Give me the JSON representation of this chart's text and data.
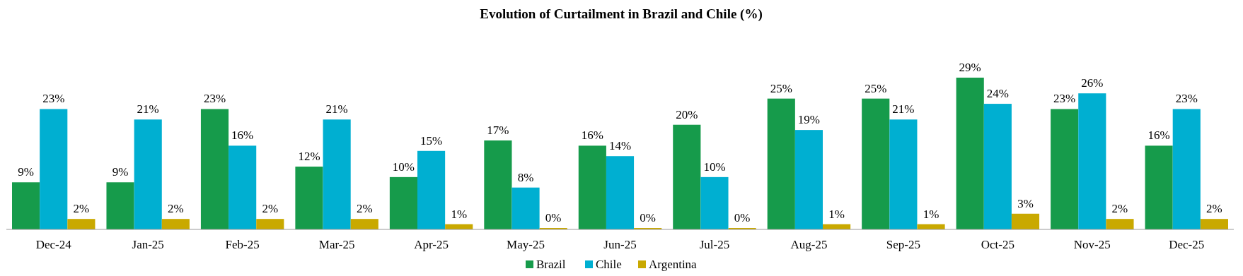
{
  "chart_data": {
    "type": "bar",
    "title": "Evolution of Curtailment in Brazil and Chile (%)",
    "categories": [
      "Dec-24",
      "Jan-25",
      "Feb-25",
      "Mar-25",
      "Apr-25",
      "May-25",
      "Jun-25",
      "Jul-25",
      "Aug-25",
      "Sep-25",
      "Oct-25",
      "Nov-25",
      "Dec-25"
    ],
    "series": [
      {
        "name": "Brazil",
        "color": "#169b4b",
        "values": [
          9,
          9,
          23,
          12,
          10,
          17,
          16,
          20,
          25,
          25,
          29,
          23,
          16
        ],
        "value_labels": [
          "9%",
          "9%",
          "23%",
          "12%",
          "10%",
          "17%",
          "16%",
          "20%",
          "25%",
          "25%",
          "29%",
          "23%",
          "16%"
        ]
      },
      {
        "name": "Chile",
        "color": "#00afd1",
        "values": [
          23,
          21,
          16,
          21,
          15,
          8,
          14,
          10,
          19,
          21,
          24,
          26,
          23
        ],
        "value_labels": [
          "23%",
          "21%",
          "16%",
          "21%",
          "15%",
          "8%",
          "14%",
          "10%",
          "19%",
          "21%",
          "24%",
          "26%",
          "23%"
        ]
      },
      {
        "name": "Argentina",
        "color": "#c9a900",
        "values": [
          2,
          2,
          2,
          2,
          1,
          0,
          0,
          0,
          1,
          1,
          3,
          2,
          2
        ],
        "value_labels": [
          "2%",
          "2%",
          "2%",
          "2%",
          "1%",
          "0%",
          "0%",
          "0%",
          "1%",
          "1%",
          "3%",
          "2%",
          "2%"
        ]
      }
    ],
    "legend": "bottom"
  }
}
